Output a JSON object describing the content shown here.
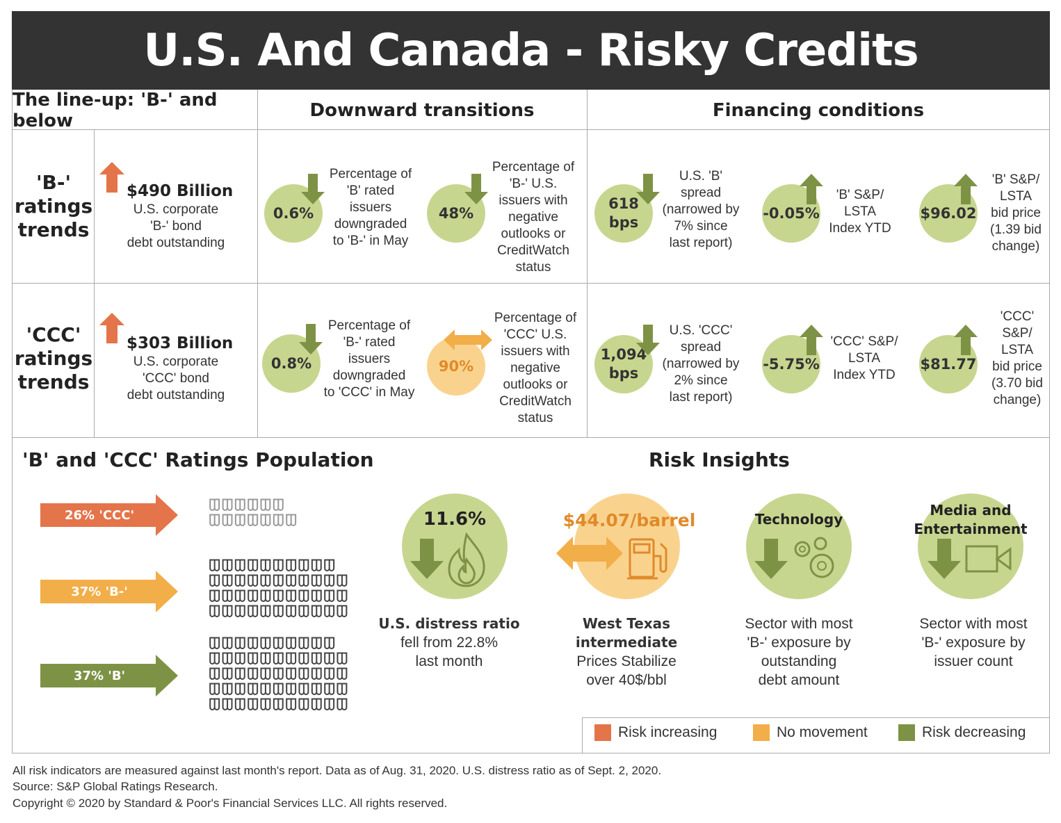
{
  "title": "U.S. And Canada - Risky Credits",
  "headers": {
    "lineup": "The line-up: 'B-' and below",
    "downward": "Downward transitions",
    "financing": "Financing conditions"
  },
  "rows": {
    "b": {
      "title": [
        "'B-'",
        "ratings",
        "trends"
      ],
      "amount": "$490 Billion",
      "amount_desc": [
        "U.S. corporate",
        "'B-' bond",
        "debt outstanding"
      ],
      "dt1_value": "0.6%",
      "dt1_desc": [
        "Percentage of",
        "'B' rated",
        "issuers",
        "downgraded",
        "to 'B-' in May"
      ],
      "dt2_value": "48%",
      "dt2_desc": [
        "Percentage of",
        "'B-' U.S.",
        "issuers with",
        "negative",
        "outlooks or",
        "CreditWatch",
        "status"
      ],
      "f1_value": [
        "618",
        "bps"
      ],
      "f1_desc": [
        "U.S. 'B'",
        "spread",
        "(narrowed by",
        "7% since",
        "last report)"
      ],
      "f2_value": "-0.05%",
      "f2_desc": [
        "'B' S&P/",
        "LSTA",
        "Index YTD"
      ],
      "f3_value": "$96.02",
      "f3_desc": [
        "'B' S&P/",
        "LSTA",
        "bid price",
        "(1.39 bid",
        "change)"
      ]
    },
    "ccc": {
      "title": [
        "'CCC'",
        "ratings",
        "trends"
      ],
      "amount": "$303 Billion",
      "amount_desc": [
        "U.S. corporate",
        "'CCC' bond",
        "debt outstanding"
      ],
      "dt1_value": "0.8%",
      "dt1_desc": [
        "Percentage of",
        "'B-' rated",
        "issuers",
        "downgraded",
        "to 'CCC' in May"
      ],
      "dt2_value": "90%",
      "dt2_desc": [
        "Percentage of",
        "'CCC' U.S.",
        "issuers with",
        "negative",
        "outlooks or",
        "CreditWatch",
        "status"
      ],
      "f1_value": [
        "1,094",
        "bps"
      ],
      "f1_desc": [
        "U.S. 'CCC'",
        "spread",
        "(narrowed by",
        "2% since",
        "last report)"
      ],
      "f2_value": "-5.75%",
      "f2_desc": [
        "'CCC' S&P/",
        "LSTA",
        "Index YTD"
      ],
      "f3_value": "$81.77",
      "f3_desc": [
        "'CCC'",
        "S&P/",
        "LSTA",
        "bid price",
        "(3.70 bid",
        "change)"
      ]
    }
  },
  "population": {
    "heading": "'B' and 'CCC' Ratings Population",
    "items": [
      {
        "label": "26% 'CCC'",
        "share": 26,
        "color": "#e4744a"
      },
      {
        "label": "37% 'B-'",
        "share": 37,
        "color": "#f2ae48"
      },
      {
        "label": "37% 'B'",
        "share": 37,
        "color": "#7e9246"
      }
    ]
  },
  "insights": {
    "heading": "Risk Insights",
    "distress": {
      "value": "11.6%",
      "title": "U.S. distress ratio",
      "desc": [
        "fell from 22.8%",
        "last month"
      ]
    },
    "wti": {
      "value": "$44.07/barrel",
      "title": [
        "West Texas",
        "intermediate"
      ],
      "desc": [
        "Prices Stabilize",
        "over 40$/bbl"
      ]
    },
    "tech": {
      "label": "Technology",
      "desc": [
        "Sector with most",
        "'B-' exposure by",
        "outstanding",
        "debt amount"
      ]
    },
    "media": {
      "label": [
        "Media and",
        "Entertainment"
      ],
      "desc": [
        "Sector with most",
        "'B-' exposure by",
        "issuer count"
      ]
    }
  },
  "legend": [
    {
      "label": "Risk increasing",
      "color": "#e4744a"
    },
    {
      "label": "No movement",
      "color": "#f2ae48"
    },
    {
      "label": "Risk decreasing",
      "color": "#7e9246"
    }
  ],
  "footer": [
    "All risk indicators are measured against last month's report. Data as of Aug. 31, 2020. U.S. distress ratio as of Sept. 2, 2020.",
    "Source: S&P Global Ratings Research.",
    "Copyright © 2020 by Standard & Poor's Financial Services LLC. All rights reserved."
  ]
}
